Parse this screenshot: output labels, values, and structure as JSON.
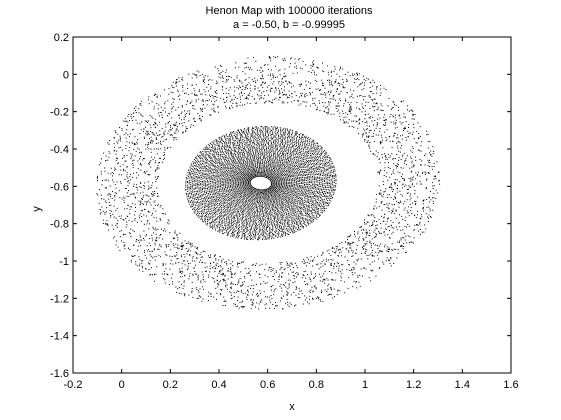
{
  "chart_data": {
    "type": "scatter",
    "title": "Henon Map with 100000 iterations",
    "subtitle": "a = -0.50, b = -0.99995",
    "xlabel": "x",
    "ylabel": "y",
    "xlim": [
      -0.2,
      1.6
    ],
    "ylim": [
      -1.6,
      0.2
    ],
    "xticks": [
      -0.2,
      0,
      0.2,
      0.4,
      0.6,
      0.8,
      1,
      1.2,
      1.4,
      1.6
    ],
    "xtick_labels": [
      "-0.2",
      "0",
      "0.2",
      "0.4",
      "0.6",
      "0.8",
      "1",
      "1.2",
      "1.4",
      "1.6"
    ],
    "yticks": [
      0.2,
      0,
      -0.2,
      -0.4,
      -0.6,
      -0.8,
      -1,
      -1.2,
      -1.4,
      -1.6
    ],
    "ytick_labels": [
      "0.2",
      "0",
      "-0.2",
      "-0.4",
      "-0.6",
      "-0.8",
      "-1",
      "-1.2",
      "-1.4",
      "-1.6"
    ],
    "grid": false,
    "legend": "none",
    "marker_color": "#000000",
    "series": [
      {
        "values": [
          {
            "x": 0.57,
            "y": -0.58
          },
          {
            "x": 0.57,
            "y": -0.58
          },
          {
            "x": 0.57,
            "y": -0.58
          }
        ],
        "rings": {
          "inner_core": {
            "cx": 0.57,
            "cy": -0.58,
            "rx_min": 0.05,
            "rx_max": 0.34,
            "ry_min": 0.04,
            "ry_max": 0.34
          },
          "outer_band": {
            "cx": 0.6,
            "cy": -0.58,
            "rx_min": 0.5,
            "rx_max": 0.78,
            "ry_min": 0.48,
            "ry_max": 0.76
          }
        }
      }
    ]
  }
}
